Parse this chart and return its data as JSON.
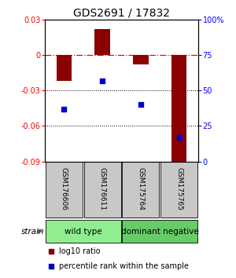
{
  "title": "GDS2691 / 17832",
  "samples": [
    "GSM176606",
    "GSM176611",
    "GSM175764",
    "GSM175765"
  ],
  "log10_ratios": [
    -0.022,
    0.022,
    -0.008,
    -0.09
  ],
  "percentile_ranks": [
    37,
    57,
    40,
    17
  ],
  "ylim_left": [
    -0.09,
    0.03
  ],
  "ylim_right": [
    0,
    100
  ],
  "yticks_left": [
    0.03,
    0,
    -0.03,
    -0.06,
    -0.09
  ],
  "ytick_labels_left": [
    "0.03",
    "0",
    "-0.03",
    "-0.06",
    "-0.09"
  ],
  "yticks_right": [
    100,
    75,
    50,
    25,
    0
  ],
  "ytick_labels_right": [
    "100%",
    "75",
    "50",
    "25",
    "0"
  ],
  "groups": [
    {
      "label": "wild type",
      "samples": [
        0,
        1
      ],
      "color": "#90ee90"
    },
    {
      "label": "dominant negative",
      "samples": [
        2,
        3
      ],
      "color": "#66cc66"
    }
  ],
  "bar_color": "#8b0000",
  "dot_color": "#0000cd",
  "bar_width": 0.4,
  "dot_size": 25,
  "label_log10": "log10 ratio",
  "label_pct": "percentile rank within the sample",
  "strain_label": "strain",
  "background_plot": "#ffffff",
  "background_sample_box": "#c8c8c8",
  "title_fontsize": 10,
  "tick_fontsize": 7,
  "sample_label_fontsize": 6.5,
  "group_label_fontsize": 7.5
}
